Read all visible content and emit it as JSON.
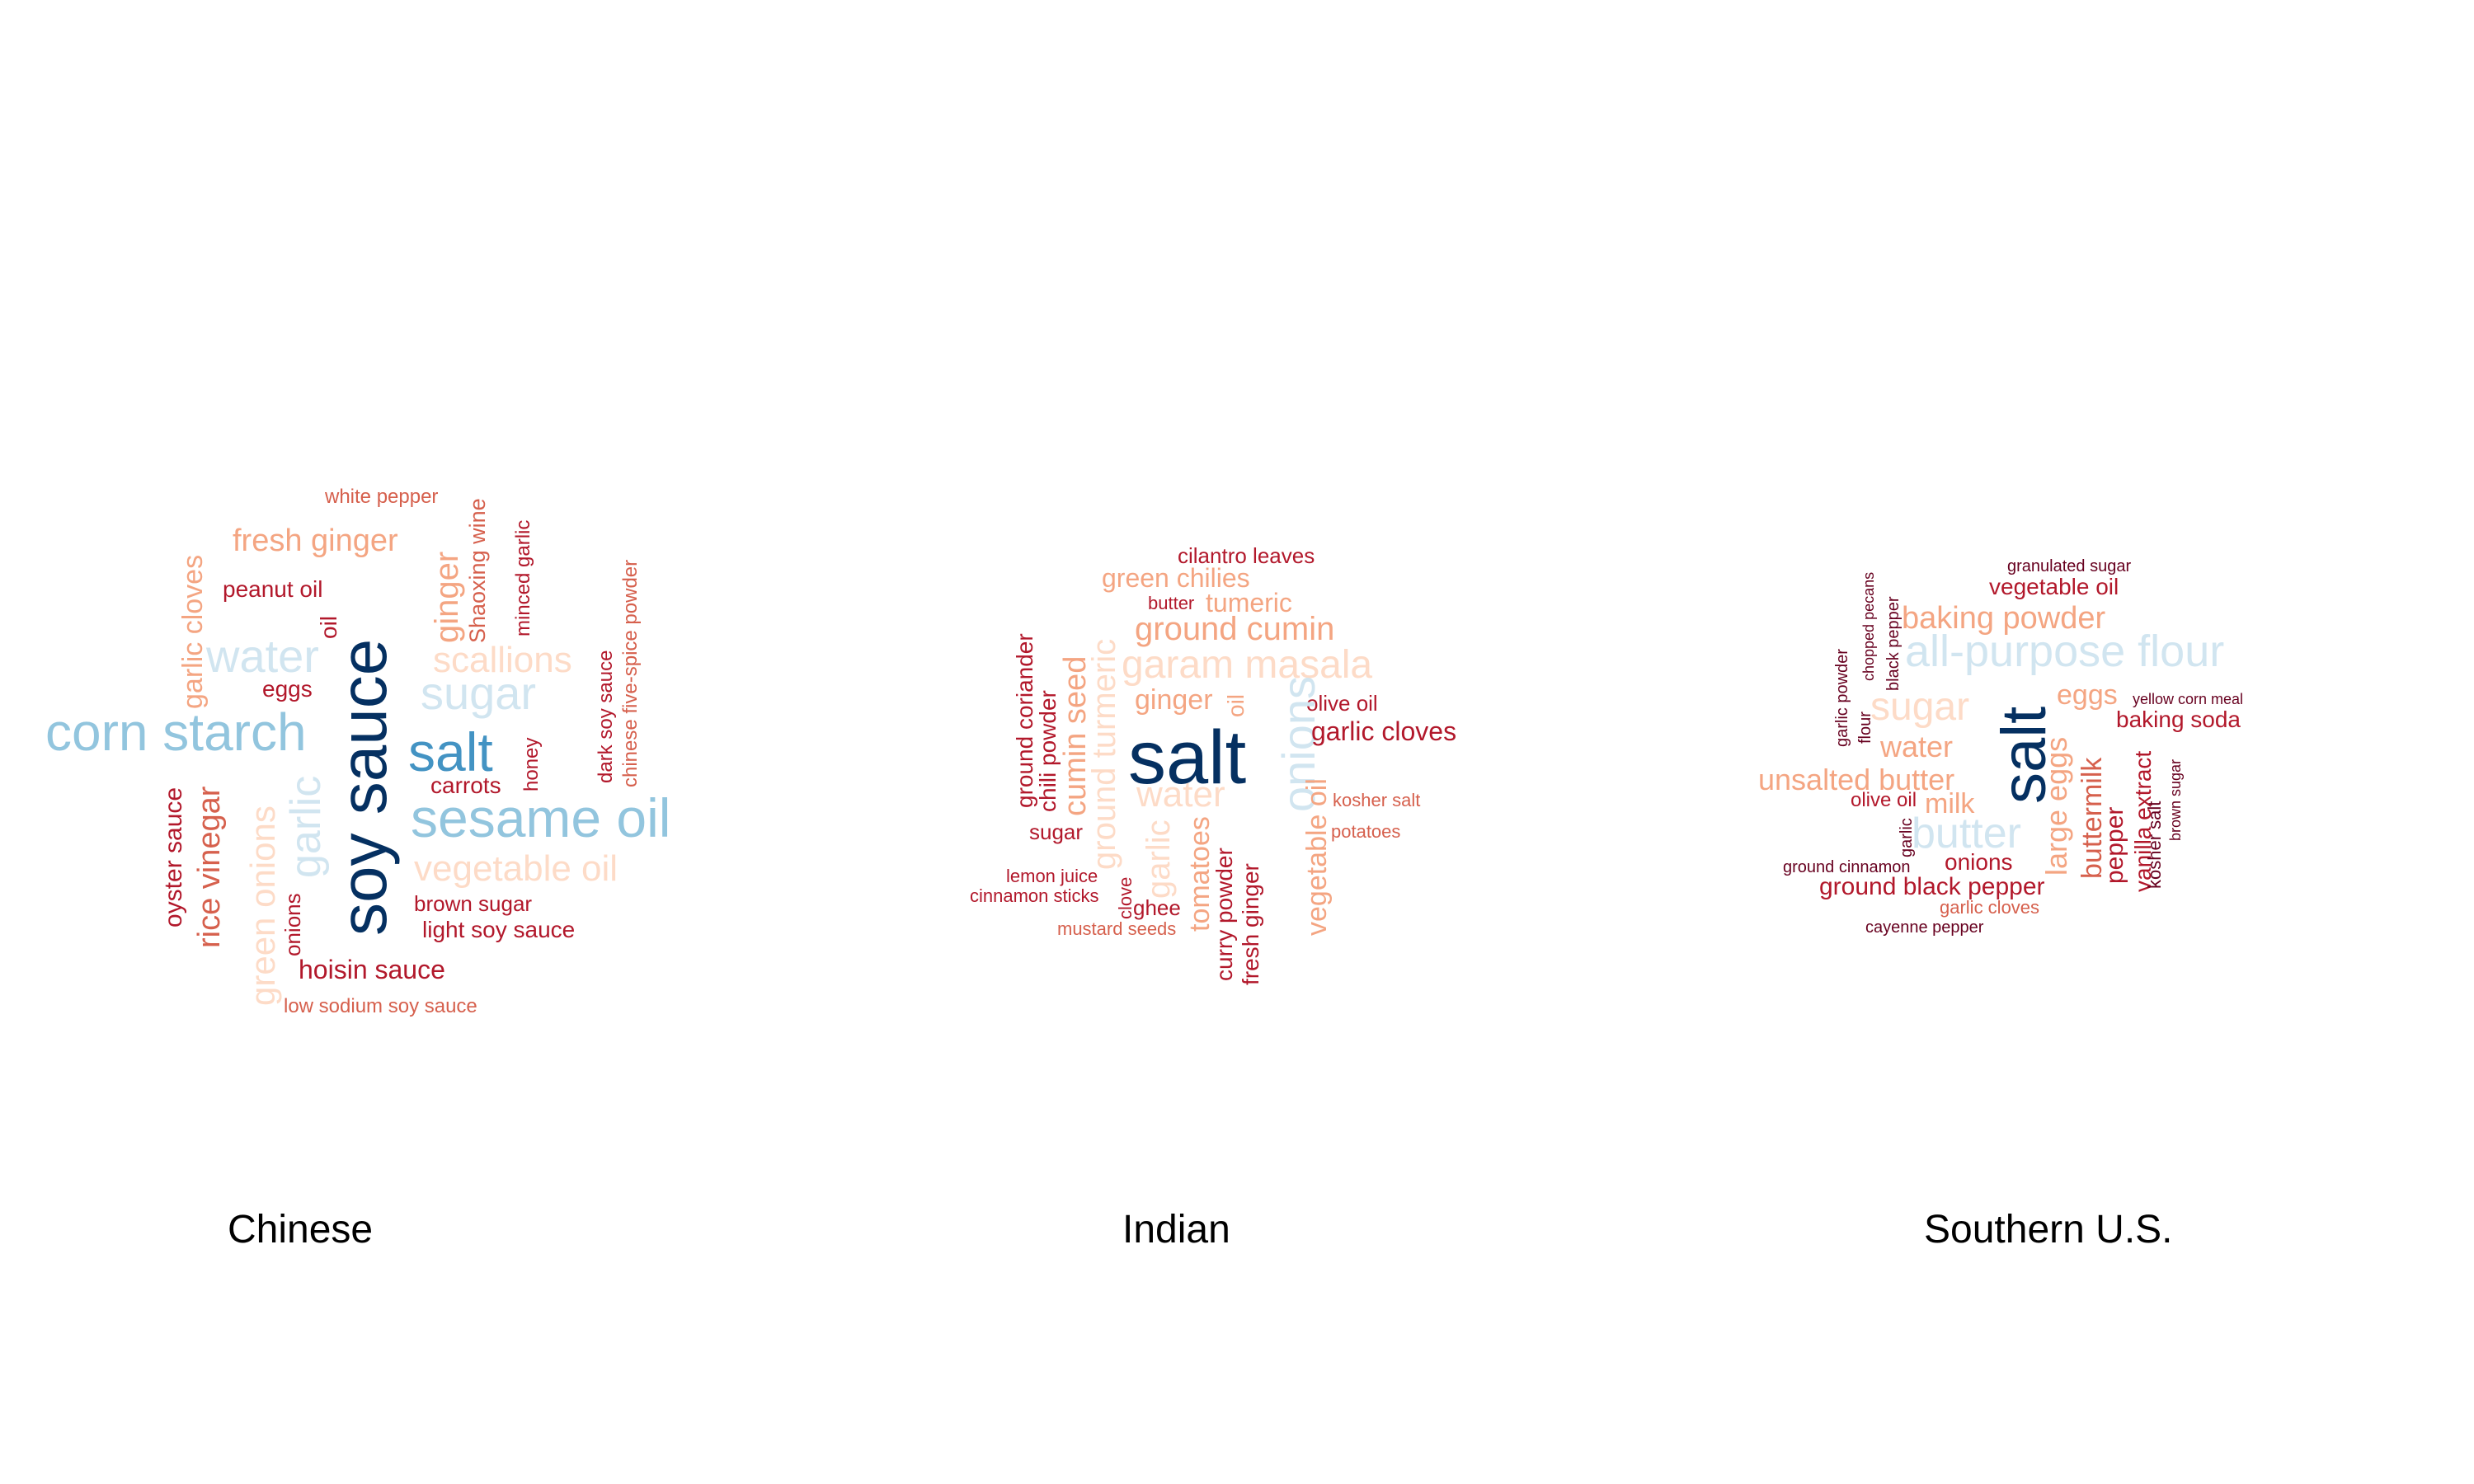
{
  "palette": {
    "dark_red": "#67001f",
    "red": "#b2182b",
    "orange_red": "#d6604d",
    "salmon": "#f4a582",
    "peach": "#fddbc7",
    "light_blue": "#d1e5f0",
    "sky_blue": "#92c5de",
    "steel_blue": "#4393c3",
    "navy": "#2166ac",
    "deep_navy": "#053061"
  },
  "panels": [
    {
      "id": "chinese",
      "caption": "Chinese",
      "words": [
        {
          "text": "white pepper"
        },
        {
          "text": "fresh ginger"
        },
        {
          "text": "peanut oil"
        },
        {
          "text": "Shaoxing wine"
        },
        {
          "text": "minced garlic"
        },
        {
          "text": "garlic cloves"
        },
        {
          "text": "ginger"
        },
        {
          "text": "oil"
        },
        {
          "text": "chinese five-spice powder"
        },
        {
          "text": "water"
        },
        {
          "text": "scallions"
        },
        {
          "text": "eggs"
        },
        {
          "text": "sugar"
        },
        {
          "text": "soy sauce"
        },
        {
          "text": "dark soy sauce"
        },
        {
          "text": "corn starch"
        },
        {
          "text": "salt"
        },
        {
          "text": "honey"
        },
        {
          "text": "carrots"
        },
        {
          "text": "sesame oil"
        },
        {
          "text": "oyster sauce"
        },
        {
          "text": "rice vinegar"
        },
        {
          "text": "green onions"
        },
        {
          "text": "garlic"
        },
        {
          "text": "vegetable oil"
        },
        {
          "text": "onions"
        },
        {
          "text": "brown sugar"
        },
        {
          "text": "light soy sauce"
        },
        {
          "text": "hoisin sauce"
        },
        {
          "text": "low sodium soy sauce"
        }
      ]
    },
    {
      "id": "indian",
      "caption": "Indian",
      "words": [
        {
          "text": "cilantro leaves"
        },
        {
          "text": "green chilies"
        },
        {
          "text": "butter"
        },
        {
          "text": "tumeric"
        },
        {
          "text": "ground cumin"
        },
        {
          "text": "garam masala"
        },
        {
          "text": "ground coriander"
        },
        {
          "text": "chili powder"
        },
        {
          "text": "cumin seed"
        },
        {
          "text": "ground turmeric"
        },
        {
          "text": "ginger"
        },
        {
          "text": "oil"
        },
        {
          "text": "olive oil"
        },
        {
          "text": "salt"
        },
        {
          "text": "onions"
        },
        {
          "text": "garlic cloves"
        },
        {
          "text": "water"
        },
        {
          "text": "vegetable oil"
        },
        {
          "text": "kosher salt"
        },
        {
          "text": "sugar"
        },
        {
          "text": "potatoes"
        },
        {
          "text": "garlic"
        },
        {
          "text": "tomatoes"
        },
        {
          "text": "lemon juice"
        },
        {
          "text": "clove"
        },
        {
          "text": "curry powder"
        },
        {
          "text": "fresh ginger"
        },
        {
          "text": "cinnamon sticks"
        },
        {
          "text": "ghee"
        },
        {
          "text": "mustard seeds"
        }
      ]
    },
    {
      "id": "southern",
      "caption": "Southern U.S.",
      "words": [
        {
          "text": "granulated sugar"
        },
        {
          "text": "chopped pecans"
        },
        {
          "text": "black pepper"
        },
        {
          "text": "vegetable oil"
        },
        {
          "text": "baking powder"
        },
        {
          "text": "garlic powder"
        },
        {
          "text": "flour"
        },
        {
          "text": "all-purpose flour"
        },
        {
          "text": "sugar"
        },
        {
          "text": "salt"
        },
        {
          "text": "eggs"
        },
        {
          "text": "yellow corn meal"
        },
        {
          "text": "baking soda"
        },
        {
          "text": "water"
        },
        {
          "text": "unsalted butter"
        },
        {
          "text": "olive oil"
        },
        {
          "text": "milk"
        },
        {
          "text": "butter"
        },
        {
          "text": "large eggs"
        },
        {
          "text": "buttermilk"
        },
        {
          "text": "pepper"
        },
        {
          "text": "vanilla extract"
        },
        {
          "text": "kosher salt"
        },
        {
          "text": "brown sugar"
        },
        {
          "text": "garlic"
        },
        {
          "text": "ground cinnamon"
        },
        {
          "text": "onions"
        },
        {
          "text": "ground black pepper"
        },
        {
          "text": "garlic cloves"
        },
        {
          "text": "cayenne pepper"
        }
      ]
    }
  ]
}
